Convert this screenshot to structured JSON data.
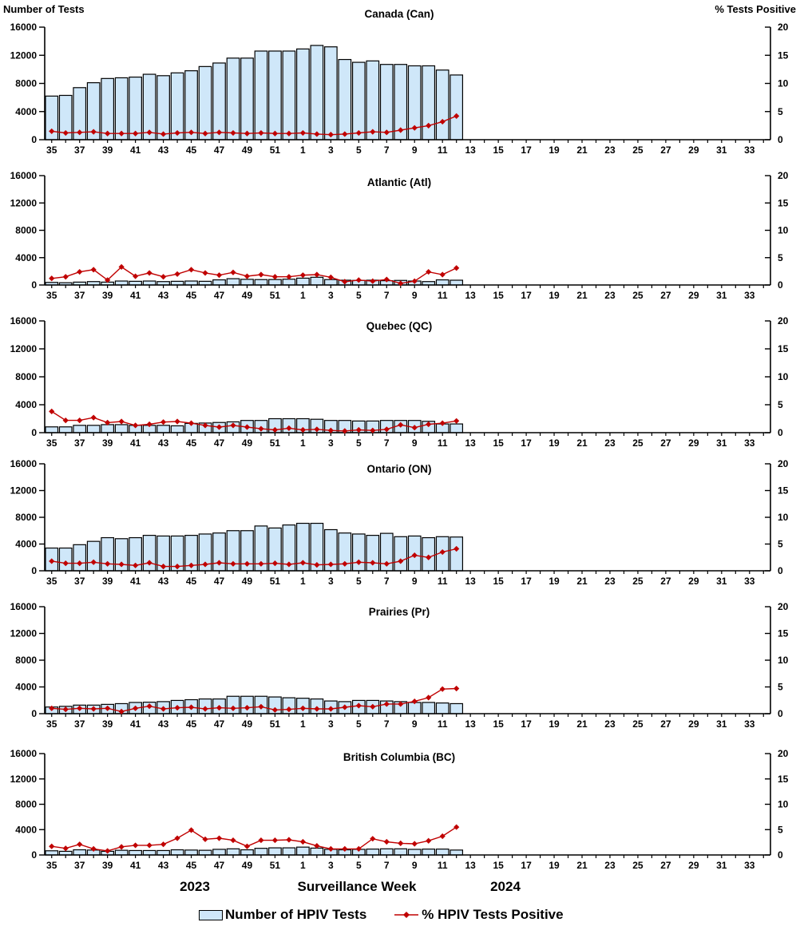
{
  "colors": {
    "bar_fill": "#CFE7F9",
    "bar_stroke": "#000000",
    "line": "#C00000",
    "axis": "#000000",
    "text": "#000000",
    "background": "#FFFFFF"
  },
  "legend": {
    "bar_label": "Number of HPIV Tests",
    "line_label": "% HPIV Tests Positive"
  },
  "chart_data": {
    "type": "combo",
    "subtype": "bar+line, 6 stacked small-multiple panels",
    "grid": "off",
    "left_axis": {
      "title": "Number of Tests",
      "ticks": [
        0,
        4000,
        8000,
        12000,
        16000
      ],
      "max": 16000
    },
    "right_axis": {
      "title": "% Tests Positive",
      "ticks": [
        0,
        5,
        10,
        15,
        20
      ],
      "max": 20
    },
    "x_axis": {
      "title": "Surveillance Week",
      "year_left": "2023",
      "year_right": "2024",
      "weeks": [
        35,
        36,
        37,
        38,
        39,
        40,
        41,
        42,
        43,
        44,
        45,
        46,
        47,
        48,
        49,
        50,
        51,
        52,
        1,
        2,
        3,
        4,
        5,
        6,
        7,
        8,
        9,
        10,
        11,
        12,
        13,
        14,
        15,
        16,
        17,
        18,
        19,
        20,
        21,
        22,
        23,
        24,
        25,
        26,
        27,
        28,
        29,
        30,
        31,
        32,
        33,
        34
      ],
      "labeled_ticks": [
        35,
        37,
        39,
        41,
        43,
        45,
        47,
        49,
        51,
        1,
        3,
        5,
        7,
        9,
        11,
        13,
        15,
        17,
        19,
        21,
        23,
        25,
        27,
        29,
        31,
        33
      ]
    },
    "categories": [
      35,
      36,
      37,
      38,
      39,
      40,
      41,
      42,
      43,
      44,
      45,
      46,
      47,
      48,
      49,
      50,
      51,
      52,
      1,
      2,
      3,
      4,
      5,
      6,
      7,
      8,
      9,
      10,
      11,
      12
    ],
    "panels": [
      {
        "title": "Canada (Can)",
        "bar_series": {
          "name": "Number of HPIV Tests",
          "values": [
            6200,
            6300,
            7400,
            8100,
            8700,
            8800,
            8900,
            9300,
            9100,
            9500,
            9800,
            10400,
            10900,
            11600,
            11600,
            12600,
            12600,
            12600,
            12900,
            13400,
            13200,
            11400,
            11000,
            11200,
            10700,
            10700,
            10500,
            10500,
            9900,
            9200
          ]
        },
        "line_series": {
          "name": "% HPIV Tests Positive",
          "values": [
            1.5,
            1.2,
            1.3,
            1.4,
            1.1,
            1.1,
            1.1,
            1.3,
            1.0,
            1.2,
            1.3,
            1.1,
            1.3,
            1.2,
            1.1,
            1.2,
            1.1,
            1.1,
            1.2,
            1.0,
            0.9,
            1.0,
            1.2,
            1.4,
            1.3,
            1.7,
            2.1,
            2.5,
            3.2,
            4.2
          ]
        }
      },
      {
        "title": "Atlantic (Atl)",
        "bar_series": {
          "name": "Number of HPIV Tests",
          "values": [
            380,
            330,
            420,
            500,
            420,
            580,
            540,
            580,
            500,
            540,
            580,
            540,
            750,
            920,
            830,
            790,
            800,
            850,
            1000,
            1130,
            790,
            700,
            670,
            700,
            630,
            670,
            580,
            500,
            750,
            700
          ]
        },
        "line_series": {
          "name": "% HPIV Tests Positive",
          "values": [
            1.2,
            1.5,
            2.4,
            2.8,
            0.9,
            3.3,
            1.6,
            2.2,
            1.5,
            2.0,
            2.8,
            2.2,
            1.8,
            2.3,
            1.6,
            1.9,
            1.5,
            1.5,
            1.8,
            1.9,
            1.4,
            0.6,
            0.9,
            0.7,
            1.0,
            0.3,
            0.7,
            2.4,
            1.9,
            3.1
          ]
        }
      },
      {
        "title": "Quebec (QC)",
        "bar_series": {
          "name": "Number of HPIV Tests",
          "values": [
            830,
            830,
            1050,
            1050,
            1150,
            1150,
            1050,
            1050,
            1050,
            980,
            1330,
            1380,
            1460,
            1550,
            1750,
            1750,
            2000,
            2000,
            2000,
            1920,
            1750,
            1750,
            1670,
            1670,
            1750,
            1750,
            1750,
            1630,
            1250,
            1250
          ]
        },
        "line_series": {
          "name": "% HPIV Tests Positive",
          "values": [
            3.8,
            2.2,
            2.2,
            2.7,
            1.8,
            2.0,
            1.3,
            1.5,
            1.9,
            2.0,
            1.7,
            1.3,
            1.0,
            1.3,
            1.0,
            0.7,
            0.5,
            0.8,
            0.5,
            0.6,
            0.4,
            0.3,
            0.5,
            0.4,
            0.6,
            1.4,
            0.9,
            1.5,
            1.7,
            2.1
          ]
        }
      },
      {
        "title": "Ontario (ON)",
        "bar_series": {
          "name": "Number of HPIV Tests",
          "values": [
            3400,
            3400,
            3900,
            4400,
            4950,
            4800,
            4950,
            5300,
            5200,
            5200,
            5300,
            5500,
            5650,
            6000,
            6000,
            6700,
            6400,
            6850,
            7100,
            7100,
            6150,
            5650,
            5500,
            5300,
            5600,
            5100,
            5200,
            4950,
            5100,
            5050
          ]
        },
        "line_series": {
          "name": "% HPIV Tests Positive",
          "values": [
            1.8,
            1.4,
            1.4,
            1.6,
            1.3,
            1.2,
            1.0,
            1.5,
            0.8,
            0.8,
            1.0,
            1.2,
            1.5,
            1.3,
            1.3,
            1.3,
            1.4,
            1.2,
            1.5,
            1.1,
            1.2,
            1.3,
            1.6,
            1.5,
            1.3,
            1.8,
            2.9,
            2.5,
            3.5,
            4.1
          ]
        }
      },
      {
        "title": "Prairies (Pr)",
        "bar_series": {
          "name": "Number of HPIV Tests",
          "values": [
            1000,
            1100,
            1280,
            1280,
            1390,
            1500,
            1680,
            1720,
            1800,
            1980,
            2090,
            2200,
            2200,
            2600,
            2600,
            2600,
            2500,
            2380,
            2310,
            2200,
            1900,
            1800,
            1980,
            1980,
            1900,
            1800,
            1680,
            1680,
            1600,
            1500
          ]
        },
        "line_series": {
          "name": "% HPIV Tests Positive",
          "values": [
            1.0,
            0.8,
            1.0,
            0.9,
            1.0,
            0.4,
            1.0,
            1.4,
            0.9,
            1.1,
            1.2,
            0.9,
            1.1,
            1.0,
            1.1,
            1.3,
            0.7,
            0.8,
            1.0,
            0.9,
            0.9,
            1.2,
            1.5,
            1.3,
            1.8,
            1.8,
            2.3,
            3.0,
            4.6,
            4.7
          ]
        }
      },
      {
        "title": "British Columbia (BC)",
        "bar_series": {
          "name": "Number of HPIV Tests",
          "values": [
            660,
            580,
            815,
            775,
            580,
            740,
            700,
            700,
            700,
            815,
            775,
            740,
            890,
            970,
            815,
            1050,
            1125,
            1125,
            1240,
            1085,
            890,
            815,
            890,
            930,
            970,
            970,
            890,
            930,
            930,
            775
          ]
        },
        "line_series": {
          "name": "% HPIV Tests Positive",
          "values": [
            1.7,
            1.3,
            2.1,
            1.2,
            0.8,
            1.6,
            1.9,
            1.9,
            2.1,
            3.3,
            4.9,
            3.1,
            3.3,
            2.9,
            1.7,
            2.9,
            2.9,
            3.0,
            2.6,
            1.8,
            1.2,
            1.2,
            1.2,
            3.2,
            2.6,
            2.3,
            2.2,
            2.8,
            3.7,
            5.5
          ]
        }
      }
    ]
  }
}
